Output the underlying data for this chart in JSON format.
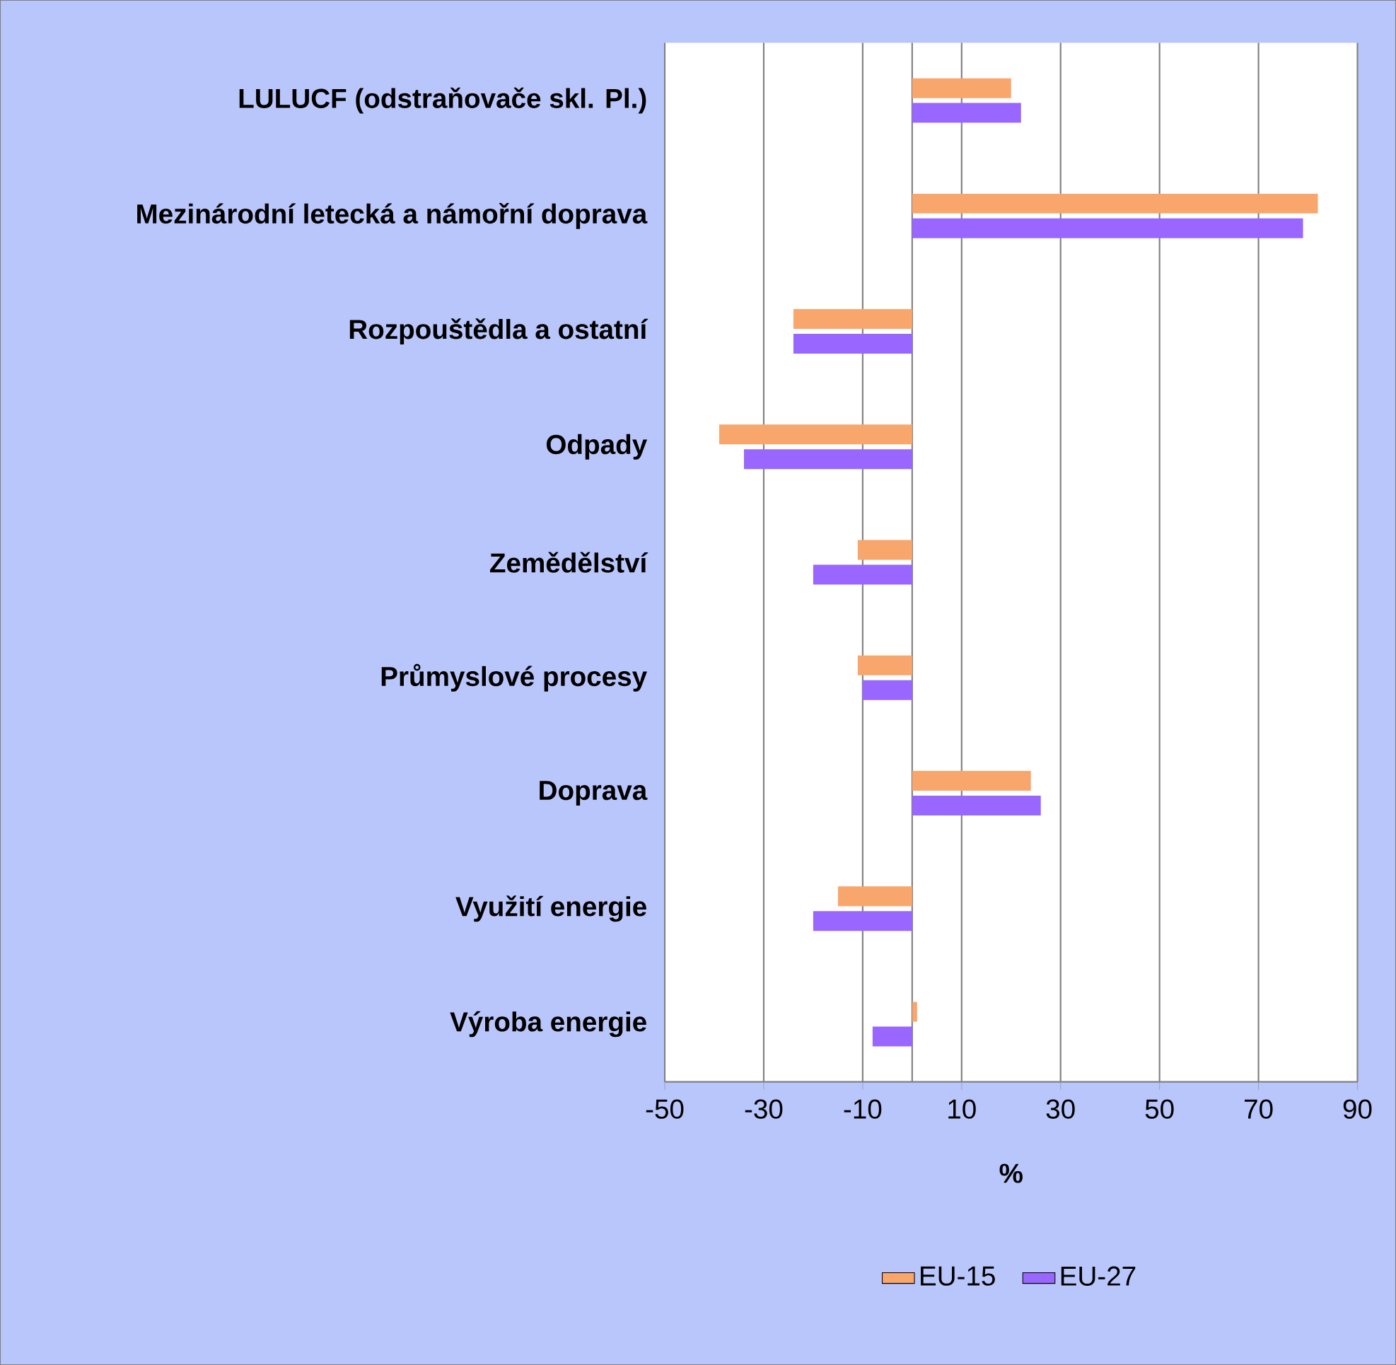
{
  "chart_data": {
    "type": "bar",
    "orientation": "horizontal",
    "categories": [
      "LULUCF (odstraňovače skl. Pl.)",
      "Mezinárodní letecká a námořní doprava",
      "Rozpouštědla a ostatní",
      "Odpady",
      "Zemědělství",
      "Průmyslové procesy",
      "Doprava",
      "Využití energie",
      "Výroba energie"
    ],
    "series": [
      {
        "name": "EU-15",
        "color": "#f9a66c",
        "values": [
          20,
          82,
          -24,
          -39,
          -11,
          -11,
          24,
          -15,
          1
        ]
      },
      {
        "name": "EU-27",
        "color": "#9966ff",
        "values": [
          22,
          79,
          -24,
          -34,
          -20,
          -10,
          26,
          -20,
          -8
        ]
      }
    ],
    "xlabel": "%",
    "xlim": [
      -50,
      90
    ],
    "xticks": [
      -50,
      -30,
      -10,
      10,
      30,
      50,
      70,
      90
    ],
    "grid": "x",
    "legend": "bottom"
  }
}
